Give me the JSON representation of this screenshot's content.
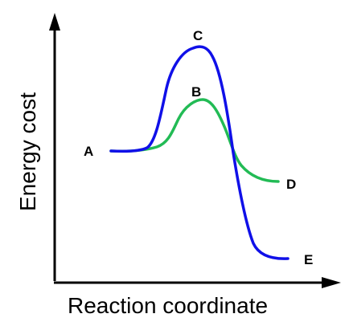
{
  "diagram": {
    "y_axis_label": "Energy cost",
    "x_axis_label": "Reaction coordinate",
    "points": {
      "a": "A",
      "b": "B",
      "c": "C",
      "d": "D",
      "e": "E"
    },
    "colors": {
      "axis": "#000000",
      "blue_curve": "#1010e8",
      "green_curve": "#22bb55"
    }
  }
}
